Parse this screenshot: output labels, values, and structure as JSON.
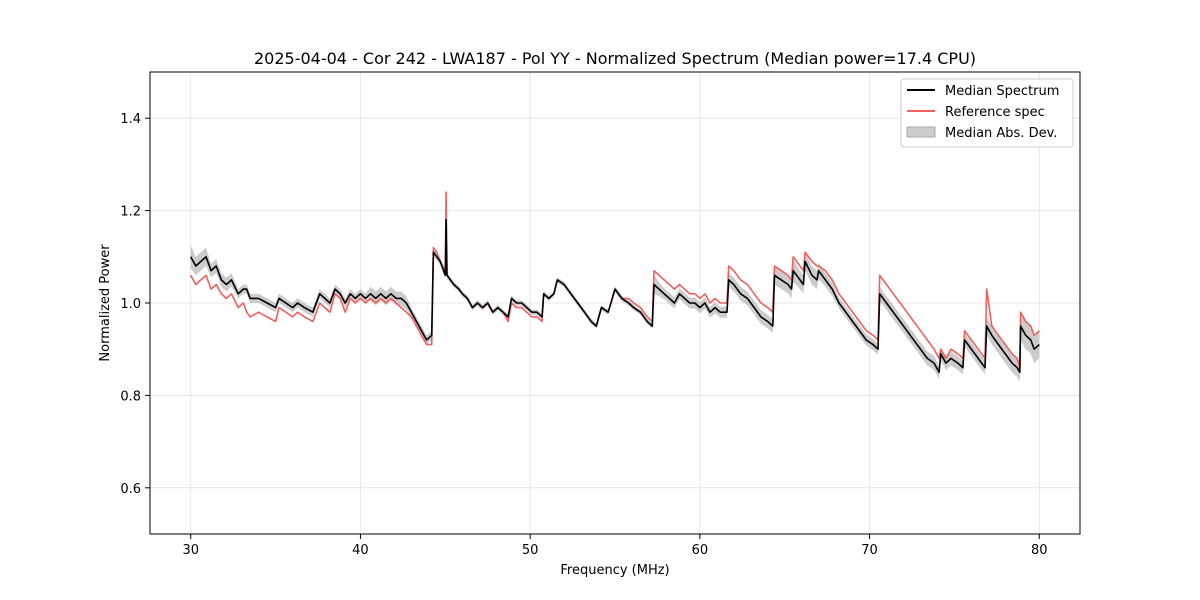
{
  "chart_data": {
    "type": "line",
    "title": "2025-04-04 - Cor 242 - LWA187 - Pol YY - Normalized Spectrum (Median power=17.4 CPU)",
    "xlabel": "Frequency (MHz)",
    "ylabel": "Normalized Power",
    "xlim": [
      27.6,
      82.4
    ],
    "ylim": [
      0.5,
      1.5
    ],
    "xticks": [
      30,
      40,
      50,
      60,
      70,
      80
    ],
    "yticks": [
      0.6,
      0.8,
      1.0,
      1.2,
      1.4
    ],
    "grid": true,
    "legend_position": "top-right",
    "colors": {
      "median": "#000000",
      "reference": "#f06060",
      "mad": "#bbbbbb"
    },
    "series": [
      {
        "name": "Median Spectrum",
        "x": [
          30.0,
          30.3,
          30.6,
          30.9,
          31.2,
          31.5,
          31.8,
          32.1,
          32.4,
          32.8,
          33.1,
          33.3,
          33.5,
          34.0,
          34.5,
          35.0,
          35.2,
          35.6,
          36.0,
          36.3,
          36.7,
          37.2,
          37.6,
          37.9,
          38.2,
          38.5,
          38.8,
          39.1,
          39.4,
          39.7,
          40.0,
          40.3,
          40.6,
          40.9,
          41.2,
          41.5,
          41.8,
          42.1,
          42.4,
          42.7,
          43.0,
          43.3,
          43.6,
          43.9,
          44.2,
          44.3,
          44.5,
          44.7,
          45.0,
          45.05,
          45.1,
          45.5,
          45.8,
          46.0,
          46.3,
          46.6,
          46.9,
          47.2,
          47.5,
          47.8,
          48.1,
          48.4,
          48.7,
          48.9,
          49.2,
          49.5,
          49.8,
          50.1,
          50.4,
          50.7,
          50.8,
          51.1,
          51.4,
          51.6,
          52.0,
          52.4,
          52.8,
          53.2,
          53.6,
          53.9,
          54.2,
          54.6,
          55.0,
          55.4,
          55.8,
          56.1,
          56.5,
          56.9,
          57.2,
          57.3,
          57.6,
          57.9,
          58.2,
          58.5,
          58.8,
          59.1,
          59.4,
          59.7,
          60.0,
          60.3,
          60.6,
          60.9,
          61.2,
          61.6,
          61.7,
          62.0,
          62.4,
          62.8,
          63.2,
          63.6,
          64.0,
          64.3,
          64.4,
          64.8,
          65.2,
          65.4,
          65.5,
          65.9,
          66.1,
          66.2,
          66.6,
          66.9,
          67.0,
          67.4,
          67.8,
          68.2,
          68.6,
          69.0,
          69.4,
          69.8,
          70.2,
          70.5,
          70.6,
          71.0,
          71.4,
          71.8,
          72.2,
          72.6,
          73.0,
          73.4,
          73.8,
          74.1,
          74.2,
          74.5,
          74.8,
          75.2,
          75.5,
          75.6,
          76.0,
          76.4,
          76.8,
          76.9,
          77.2,
          77.6,
          78.0,
          78.4,
          78.7,
          78.85,
          78.9,
          79.2,
          79.5,
          79.7,
          80.0
        ],
        "y": [
          1.1,
          1.08,
          1.09,
          1.1,
          1.07,
          1.08,
          1.05,
          1.04,
          1.05,
          1.02,
          1.03,
          1.03,
          1.01,
          1.01,
          1.0,
          0.99,
          1.01,
          1.0,
          0.99,
          1.0,
          0.99,
          0.98,
          1.02,
          1.01,
          1.0,
          1.03,
          1.02,
          1.0,
          1.02,
          1.01,
          1.02,
          1.01,
          1.02,
          1.01,
          1.02,
          1.01,
          1.02,
          1.01,
          1.01,
          1.0,
          0.98,
          0.96,
          0.94,
          0.92,
          0.93,
          1.11,
          1.1,
          1.09,
          1.06,
          1.18,
          1.06,
          1.04,
          1.03,
          1.02,
          1.01,
          0.99,
          1.0,
          0.99,
          1.0,
          0.98,
          0.99,
          0.98,
          0.97,
          1.01,
          1.0,
          1.0,
          0.99,
          0.98,
          0.98,
          0.97,
          1.02,
          1.01,
          1.02,
          1.05,
          1.04,
          1.02,
          1.0,
          0.98,
          0.96,
          0.95,
          0.99,
          0.98,
          1.03,
          1.01,
          1.0,
          0.99,
          0.98,
          0.96,
          0.95,
          1.04,
          1.03,
          1.02,
          1.01,
          1.0,
          1.02,
          1.01,
          1.0,
          1.0,
          0.99,
          1.0,
          0.98,
          0.99,
          0.98,
          0.98,
          1.05,
          1.04,
          1.02,
          1.01,
          0.99,
          0.97,
          0.96,
          0.95,
          1.06,
          1.05,
          1.04,
          1.03,
          1.07,
          1.05,
          1.04,
          1.09,
          1.06,
          1.05,
          1.07,
          1.05,
          1.03,
          1.0,
          0.98,
          0.96,
          0.94,
          0.92,
          0.91,
          0.9,
          1.02,
          1.0,
          0.98,
          0.96,
          0.94,
          0.92,
          0.9,
          0.88,
          0.87,
          0.85,
          0.89,
          0.87,
          0.88,
          0.87,
          0.86,
          0.92,
          0.9,
          0.88,
          0.86,
          0.95,
          0.93,
          0.91,
          0.89,
          0.87,
          0.86,
          0.85,
          0.95,
          0.93,
          0.92,
          0.9,
          0.91
        ]
      },
      {
        "name": "Reference spec",
        "x": [
          30.0,
          30.3,
          30.6,
          30.9,
          31.2,
          31.5,
          31.8,
          32.1,
          32.4,
          32.8,
          33.1,
          33.3,
          33.5,
          34.0,
          34.5,
          35.0,
          35.2,
          35.6,
          36.0,
          36.3,
          36.7,
          37.2,
          37.6,
          37.9,
          38.2,
          38.5,
          38.8,
          39.1,
          39.4,
          39.7,
          40.0,
          40.3,
          40.6,
          40.9,
          41.2,
          41.5,
          41.8,
          42.1,
          42.4,
          42.7,
          43.0,
          43.3,
          43.6,
          43.9,
          44.2,
          44.3,
          44.5,
          44.7,
          45.0,
          45.05,
          45.1,
          45.5,
          45.8,
          46.0,
          46.3,
          46.6,
          46.9,
          47.2,
          47.5,
          47.8,
          48.1,
          48.4,
          48.7,
          48.9,
          49.2,
          49.5,
          49.8,
          50.1,
          50.4,
          50.7,
          50.8,
          51.1,
          51.4,
          51.6,
          52.0,
          52.4,
          52.8,
          53.2,
          53.6,
          53.9,
          54.2,
          54.6,
          55.0,
          55.4,
          55.8,
          56.1,
          56.5,
          56.9,
          57.2,
          57.3,
          57.6,
          57.9,
          58.2,
          58.5,
          58.8,
          59.1,
          59.4,
          59.7,
          60.0,
          60.3,
          60.6,
          60.9,
          61.2,
          61.6,
          61.7,
          62.0,
          62.4,
          62.8,
          63.2,
          63.6,
          64.0,
          64.3,
          64.4,
          64.8,
          65.2,
          65.4,
          65.5,
          65.9,
          66.1,
          66.2,
          66.6,
          66.9,
          67.0,
          67.4,
          67.8,
          68.2,
          68.6,
          69.0,
          69.4,
          69.8,
          70.2,
          70.5,
          70.6,
          71.0,
          71.4,
          71.8,
          72.2,
          72.6,
          73.0,
          73.4,
          73.8,
          74.1,
          74.2,
          74.5,
          74.8,
          75.2,
          75.5,
          75.6,
          76.0,
          76.4,
          76.8,
          76.9,
          77.2,
          77.6,
          78.0,
          78.4,
          78.7,
          78.85,
          78.9,
          79.2,
          79.5,
          79.7,
          80.0
        ],
        "y": [
          1.06,
          1.04,
          1.05,
          1.06,
          1.03,
          1.04,
          1.02,
          1.01,
          1.02,
          0.99,
          1.0,
          0.98,
          0.97,
          0.98,
          0.97,
          0.96,
          0.99,
          0.98,
          0.97,
          0.98,
          0.97,
          0.96,
          1.0,
          0.99,
          0.98,
          1.02,
          1.01,
          0.98,
          1.01,
          1.0,
          1.01,
          1.0,
          1.01,
          1.0,
          1.01,
          1.0,
          1.01,
          1.0,
          0.99,
          0.98,
          0.97,
          0.95,
          0.93,
          0.91,
          0.91,
          1.12,
          1.11,
          1.09,
          1.07,
          1.24,
          1.06,
          1.04,
          1.03,
          1.02,
          1.01,
          0.99,
          1.0,
          0.99,
          1.0,
          0.98,
          0.99,
          0.98,
          0.96,
          1.0,
          0.99,
          0.99,
          0.98,
          0.97,
          0.97,
          0.96,
          1.02,
          1.01,
          1.02,
          1.05,
          1.04,
          1.02,
          1.0,
          0.98,
          0.96,
          0.95,
          0.99,
          0.98,
          1.03,
          1.01,
          1.01,
          1.0,
          0.99,
          0.97,
          0.96,
          1.07,
          1.06,
          1.05,
          1.04,
          1.03,
          1.04,
          1.03,
          1.02,
          1.02,
          1.01,
          1.02,
          1.0,
          1.01,
          1.0,
          1.0,
          1.08,
          1.07,
          1.05,
          1.04,
          1.02,
          1.0,
          0.99,
          0.98,
          1.08,
          1.07,
          1.06,
          1.05,
          1.1,
          1.08,
          1.07,
          1.11,
          1.09,
          1.08,
          1.08,
          1.07,
          1.05,
          1.02,
          1.0,
          0.98,
          0.96,
          0.94,
          0.93,
          0.92,
          1.06,
          1.04,
          1.02,
          1.0,
          0.98,
          0.96,
          0.94,
          0.92,
          0.9,
          0.88,
          0.9,
          0.88,
          0.9,
          0.89,
          0.88,
          0.94,
          0.92,
          0.9,
          0.88,
          1.03,
          0.95,
          0.93,
          0.91,
          0.89,
          0.88,
          0.86,
          0.98,
          0.96,
          0.95,
          0.93,
          0.94
        ]
      }
    ],
    "mad_band": {
      "name": "Median Abs. Dev.",
      "width": [
        0.025,
        0.02,
        0.02,
        0.02,
        0.015,
        0.015,
        0.015,
        0.015,
        0.015,
        0.01,
        0.01,
        0.01,
        0.01,
        0.01,
        0.01,
        0.01,
        0.01,
        0.01,
        0.01,
        0.01,
        0.01,
        0.01,
        0.01,
        0.01,
        0.01,
        0.01,
        0.01,
        0.01,
        0.01,
        0.01,
        0.01,
        0.01,
        0.015,
        0.015,
        0.015,
        0.015,
        0.015,
        0.015,
        0.015,
        0.015,
        0.01,
        0.01,
        0.01,
        0.01,
        0.01,
        0.01,
        0.008,
        0.008,
        0.008,
        0.008,
        0.008,
        0.006,
        0.006,
        0.006,
        0.006,
        0.006,
        0.006,
        0.006,
        0.006,
        0.006,
        0.006,
        0.006,
        0.006,
        0.006,
        0.006,
        0.006,
        0.006,
        0.006,
        0.006,
        0.006,
        0.006,
        0.006,
        0.006,
        0.006,
        0.006,
        0.006,
        0.006,
        0.006,
        0.006,
        0.006,
        0.006,
        0.006,
        0.006,
        0.006,
        0.006,
        0.006,
        0.006,
        0.006,
        0.006,
        0.02,
        0.015,
        0.012,
        0.012,
        0.012,
        0.012,
        0.012,
        0.012,
        0.012,
        0.012,
        0.012,
        0.012,
        0.012,
        0.012,
        0.012,
        0.015,
        0.015,
        0.015,
        0.015,
        0.015,
        0.015,
        0.015,
        0.015,
        0.02,
        0.02,
        0.02,
        0.02,
        0.025,
        0.02,
        0.02,
        0.02,
        0.02,
        0.02,
        0.018,
        0.015,
        0.015,
        0.012,
        0.012,
        0.012,
        0.012,
        0.012,
        0.012,
        0.012,
        0.015,
        0.015,
        0.015,
        0.015,
        0.015,
        0.015,
        0.015,
        0.015,
        0.015,
        0.015,
        0.015,
        0.015,
        0.015,
        0.015,
        0.015,
        0.015,
        0.015,
        0.015,
        0.015,
        0.02,
        0.02,
        0.02,
        0.02,
        0.02,
        0.02,
        0.02,
        0.03,
        0.03,
        0.03,
        0.03,
        0.03
      ]
    }
  }
}
